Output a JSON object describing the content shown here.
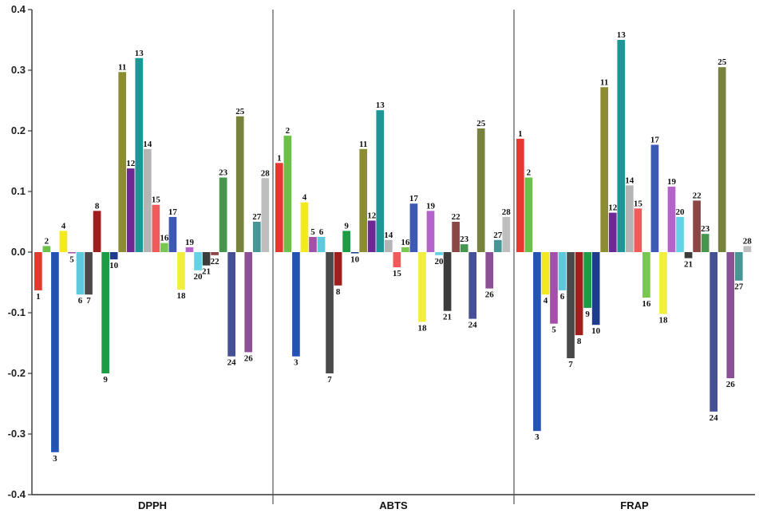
{
  "chart_data": {
    "type": "bar",
    "ylim": [
      -0.4,
      0.4
    ],
    "yticks": [
      "0.4",
      "0.3",
      "0.2",
      "0.1",
      "0.0",
      "-0.1",
      "-0.2",
      "-0.3",
      "-0.4"
    ],
    "grid": false,
    "bar_labels": [
      "1",
      "2",
      "3",
      "4",
      "5",
      "6",
      "7",
      "8",
      "9",
      "10",
      "11",
      "12",
      "13",
      "14",
      "15",
      "16",
      "17",
      "18",
      "19",
      "20",
      "21",
      "22",
      "23",
      "24",
      "25",
      "26",
      "27",
      "28"
    ],
    "bar_colors": [
      "#e8372e",
      "#6cc04a",
      "#2354b4",
      "#f2ea1f",
      "#a550a8",
      "#5ec8dc",
      "#4a4a4a",
      "#a01e1e",
      "#1e9c44",
      "#1e3c8c",
      "#8c8c32",
      "#6e2896",
      "#1e9696",
      "#b4b4b4",
      "#f05a5a",
      "#78c850",
      "#3c5ab4",
      "#f0f03c",
      "#b464c8",
      "#64d2e6",
      "#3c3c3c",
      "#8c4646",
      "#469650",
      "#465096",
      "#78823c",
      "#8c5096",
      "#469696",
      "#bebebe"
    ],
    "groups": [
      {
        "name": "DPPH",
        "values": [
          -0.063,
          0.01,
          -0.33,
          0.035,
          -0.002,
          -0.07,
          -0.07,
          0.068,
          -0.2,
          -0.012,
          0.297,
          0.138,
          0.32,
          0.17,
          0.078,
          0.015,
          0.058,
          -0.062,
          0.008,
          -0.03,
          -0.022,
          -0.005,
          0.123,
          -0.172,
          0.224,
          -0.165,
          0.05,
          0.122
        ]
      },
      {
        "name": "ABTS",
        "values": [
          0.147,
          0.192,
          -0.172,
          0.082,
          0.025,
          0.025,
          -0.2,
          -0.055,
          0.035,
          -0.002,
          0.17,
          0.052,
          0.234,
          0.02,
          -0.025,
          0.008,
          0.08,
          -0.115,
          0.068,
          -0.005,
          -0.097,
          0.05,
          0.013,
          -0.11,
          0.204,
          -0.06,
          0.02,
          0.058
        ]
      },
      {
        "name": "FRAP",
        "values": [
          0.187,
          0.123,
          -0.295,
          -0.07,
          -0.118,
          -0.063,
          -0.175,
          -0.137,
          -0.092,
          -0.12,
          0.272,
          0.065,
          0.35,
          0.11,
          0.072,
          -0.075,
          0.177,
          -0.102,
          0.108,
          0.058,
          -0.01,
          0.085,
          0.03,
          -0.263,
          0.305,
          -0.208,
          -0.047,
          0.01
        ]
      }
    ]
  }
}
